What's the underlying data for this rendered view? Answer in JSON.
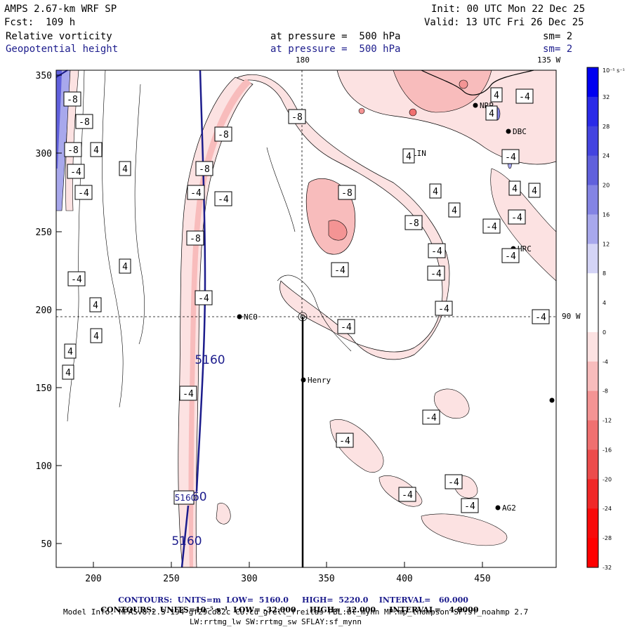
{
  "header": {
    "model": "AMPS 2.67-km WRF SP",
    "init": "Init: 00 UTC Mon 22 Dec 25",
    "fcst": "Fcst:  109 h",
    "valid": "Valid: 13 UTC Fri 26 Dec 25",
    "field1": "Relative vorticity",
    "pressure1": "at pressure =  500 hPa",
    "sm1": "sm= 2",
    "field2": "Geopotential height",
    "pressure2": "at pressure =  500 hPa",
    "sm2": "sm= 2"
  },
  "meridians": {
    "top_180": "180",
    "top_135w": "135 W",
    "right_90w": "90 W"
  },
  "axes": {
    "x_ticks": [
      "200",
      "250",
      "300",
      "350",
      "400",
      "450"
    ],
    "y_ticks": [
      "350",
      "300",
      "250",
      "200",
      "150",
      "100",
      "50"
    ]
  },
  "stations": [
    {
      "name": "NCO"
    },
    {
      "name": "Henry"
    },
    {
      "name": "LIN"
    },
    {
      "name": "DBC"
    },
    {
      "name": "HRC"
    },
    {
      "name": "AG2"
    },
    {
      "name": "NRP"
    }
  ],
  "contour_labels": [
    {
      "text": "-8"
    },
    {
      "text": "-8"
    },
    {
      "text": "-8"
    },
    {
      "text": "-8"
    },
    {
      "text": "-8"
    },
    {
      "text": "-8"
    },
    {
      "text": "-8"
    },
    {
      "text": "-8"
    },
    {
      "text": "-8"
    },
    {
      "text": "4"
    },
    {
      "text": "4"
    },
    {
      "text": "4"
    },
    {
      "text": "4"
    },
    {
      "text": "4"
    },
    {
      "text": "4"
    },
    {
      "text": "4"
    },
    {
      "text": "4"
    },
    {
      "text": "4"
    },
    {
      "text": "4"
    },
    {
      "text": "4"
    },
    {
      "text": "4"
    },
    {
      "text": "4"
    },
    {
      "text": "4"
    },
    {
      "text": "-4"
    },
    {
      "text": "-4"
    },
    {
      "text": "-4"
    },
    {
      "text": "-4"
    },
    {
      "text": "-4"
    },
    {
      "text": "-4"
    },
    {
      "text": "-4"
    },
    {
      "text": "-4"
    },
    {
      "text": "-4"
    },
    {
      "text": "-4"
    },
    {
      "text": "-4"
    },
    {
      "text": "-4"
    },
    {
      "text": "-4"
    },
    {
      "text": "-4"
    },
    {
      "text": "-4"
    },
    {
      "text": "-4"
    },
    {
      "text": "-4"
    },
    {
      "text": "-4"
    },
    {
      "text": "-4"
    },
    {
      "text": "-4"
    },
    {
      "text": "-4"
    },
    {
      "text": "-4"
    },
    {
      "text": "-4"
    }
  ],
  "height_labels": [
    "5160",
    "5160",
    "5160",
    "5160"
  ],
  "colorbar": {
    "unit_label": "10⁻⁵ s⁻¹",
    "ticks": [
      "32",
      "28",
      "24",
      "20",
      "16",
      "12",
      "8",
      "4",
      "0",
      "-4",
      "-8",
      "-12",
      "-16",
      "-20",
      "-24",
      "-28",
      "-32"
    ],
    "colors": [
      "#0000f0",
      "#2a2ae8",
      "#4444e0",
      "#6060dc",
      "#8484e4",
      "#a8a8ec",
      "#d4d4f6",
      "#ffffff",
      "#ffffff",
      "#fce2e2",
      "#f8bcbc",
      "#f49494",
      "#f07070",
      "#ec4c4c",
      "#f02828",
      "#f80a0a",
      "#ff0000"
    ]
  },
  "footer": {
    "line1_a": "CONTOURS:  UNITS=m  LOW=  5160.0",
    "line1_b": "HIGH=  5220.0",
    "line1_c": "INTERVAL=   60.000",
    "line2_a": "CONTOURS:  UNITS=10⁻⁵ s⁻¹  LOW= -32.000",
    "line2_b": "HIGH=  32.000",
    "line2_c": "INTERVAL=   4.0000",
    "line3": "Model Info: MPASv8.2.3-194-gf29cd82c CU:cu_grell_freitas PBL:bl_mynn MP:mp_thompson SF:sf_noahmp 2.7",
    "line4": "LW:rrtmg_lw SW:rrtmg_sw SFLAY:sf_mynn"
  }
}
